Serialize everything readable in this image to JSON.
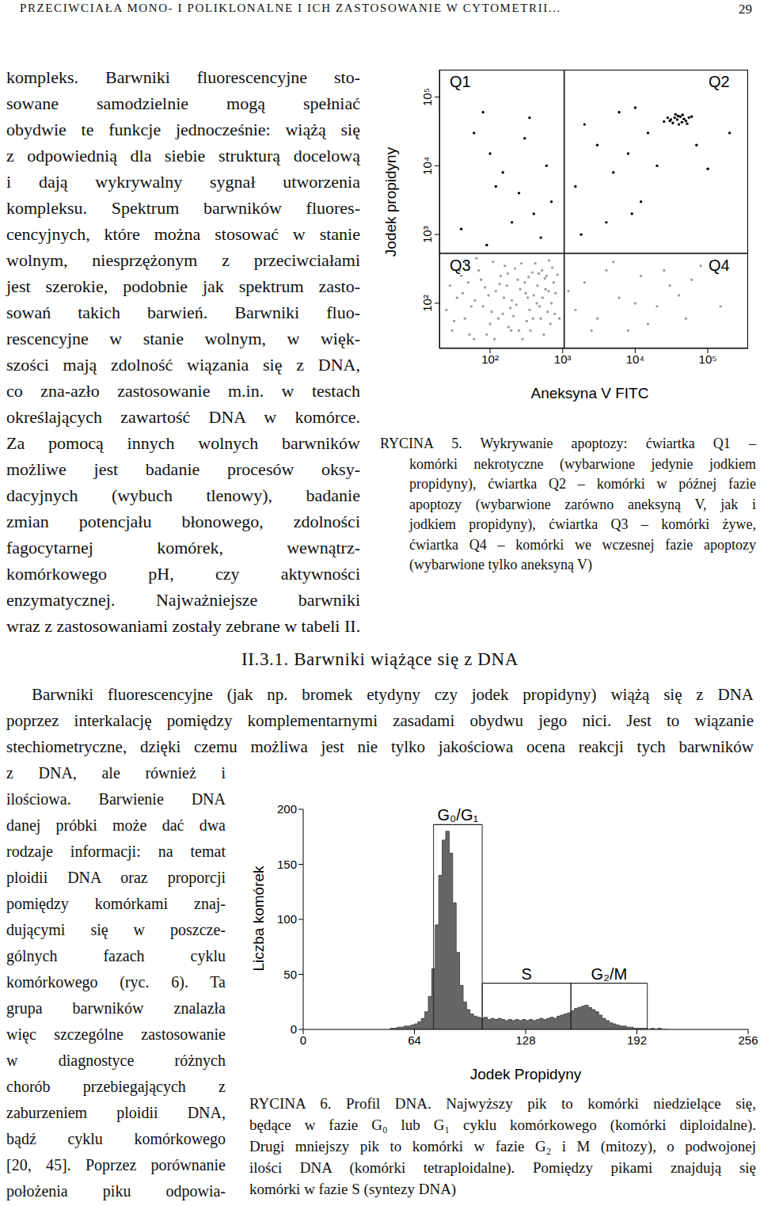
{
  "document": {
    "header": {
      "running_title": "PRZECIWCIAŁA MONO- I POLIKLONALNE I ICH ZASTOSOWANIE W CYTOMETRII...",
      "page": "29"
    },
    "column_text": [
      "kompleks. Barwniki fluorescencyjne sto-",
      "sowane samodzielnie mogą spełniać",
      "obydwie te funkcje jednocześnie: wiążą się",
      "z odpowiednią dla siebie strukturą docelową",
      "i dają wykrywalny sygnał utworzenia",
      "kompleksu. Spektrum barwników fluores-",
      "cencyjnych, które można stosować w stanie",
      "wolnym, niesprzężonym z przeciwciałami",
      "jest szerokie, podobnie jak spektrum zasto-",
      "sowań takich barwień. Barwniki fluo-",
      "rescencyjne w stanie wolnym, w więk-",
      "szości mają zdolność wiązania się z DNA,",
      "co zna-azło zastosowanie m.in. w testach",
      "określających zawartość DNA w komórce.",
      "Za pomocą innych wolnych barwników",
      "możliwe jest badanie procesów oksy-",
      "dacyjnych (wybuch tlenowy), badanie",
      "zmian potencjału błonowego, zdolności",
      "fagocytarnej komórek, wewnątrz-",
      "komórkowego pH, czy aktywności",
      "enzymatycznej. Najważniejsze barwniki",
      "wraz z zastosowaniami zostały zebrane w tabeli II."
    ],
    "section_heading": "II.3.1. Barwniki wiążące się z DNA",
    "section_full_lines": [
      "Barwniki fluorescencyjne (jak np. bromek etydyny czy jodek propidyny) wiążą się z DNA",
      "poprzez interkalację pomiędzy komplementarnymi zasadami obydwu jego nici. Jest to wiązanie",
      "stechiometryczne, dzięki czemu możliwa jest nie tylko jakościowa ocena reakcji tych barwników"
    ],
    "section_narrow_lines": [
      "z DNA, ale również i",
      "ilościowa. Barwienie DNA",
      "danej próbki może dać dwa",
      "rodzaje informacji: na temat",
      "ploidii DNA oraz proporcji",
      "pomiędzy komórkami znaj-",
      "dującymi się w poszcze-",
      "gólnych fazach cyklu",
      "komórkowego (ryc. 6). Ta",
      "grupa barwników znalazła",
      "więc szczególne zastosowanie",
      "w diagnostyce różnych",
      "chorób przebiegających z",
      "zaburzeniem ploidii DNA,",
      "bądź cyklu komórkowego",
      "[20, 45]. Poprzez porównanie",
      "położenia piku odpowia-"
    ]
  },
  "chart_data": [
    {
      "type": "scatter",
      "x_label": "Aneksyna V FITC",
      "y_label": "Jodek propidyny",
      "log": true,
      "xlim": [
        20,
        360000
      ],
      "ylim": [
        22,
        250000
      ],
      "xticks": [
        {
          "value": 100,
          "label": "10²"
        },
        {
          "value": 1000,
          "label": "10³"
        },
        {
          "value": 10000,
          "label": "10⁴"
        },
        {
          "value": 100000,
          "label": "10⁵"
        }
      ],
      "yticks": [
        {
          "value": 100,
          "label": "10²"
        },
        {
          "value": 1000,
          "label": "10³"
        },
        {
          "value": 10000,
          "label": "10⁴"
        },
        {
          "value": 100000,
          "label": "10⁵"
        }
      ],
      "thresholds": {
        "x": 1050,
        "y": 530
      },
      "annotations": [
        "Q1",
        "Q2",
        "Q3",
        "Q4"
      ],
      "series": [
        {
          "color": "#a0a0a0",
          "x": [
            30,
            45,
            60,
            80,
            100,
            120,
            150,
            200,
            250,
            300,
            350,
            400,
            500,
            600,
            700,
            35,
            50,
            70,
            90,
            110,
            140,
            180,
            220,
            260,
            320,
            380,
            450,
            550,
            650,
            750,
            40,
            55,
            65,
            85,
            130,
            160,
            190,
            240,
            280,
            330,
            420,
            480,
            580,
            680,
            25,
            28,
            38,
            95,
            170,
            210,
            360,
            520,
            620,
            800,
            900,
            1500,
            2000,
            3000,
            4000,
            6000,
            8000,
            12000,
            20000,
            30000,
            50000,
            80000,
            1200,
            2500,
            5000,
            10000,
            15000,
            25000,
            40000,
            60000,
            150000,
            32,
            42,
            52,
            62,
            75,
            105,
            115,
            135,
            155,
            175,
            195,
            230,
            270,
            310,
            340,
            390,
            440,
            470,
            530,
            570,
            640,
            720,
            780,
            850,
            46
          ],
          "y": [
            40,
            60,
            30,
            90,
            50,
            150,
            70,
            110,
            40,
            200,
            80,
            130,
            60,
            250,
            100,
            120,
            200,
            300,
            35,
            400,
            250,
            45,
            320,
            160,
            55,
            280,
            180,
            35,
            420,
            200,
            250,
            90,
            450,
            170,
            60,
            350,
            85,
            220,
            30,
            120,
            380,
            90,
            160,
            50,
            80,
            180,
            300,
            130,
            180,
            65,
            40,
            300,
            75,
            140,
            60,
            80,
            200,
            60,
            300,
            120,
            40,
            250,
            90,
            180,
            60,
            350,
            150,
            40,
            400,
            100,
            50,
            300,
            130,
            220,
            90,
            55,
            140,
            35,
            110,
            220,
            75,
            30,
            190,
            120,
            270,
            40,
            95,
            380,
            140,
            240,
            60,
            100,
            270,
            120,
            230,
            150,
            330,
            70,
            260,
            380
          ]
        },
        {
          "color": "#000000",
          "x": [
            60,
            100,
            150,
            250,
            400,
            80,
            120,
            200,
            300,
            500,
            700,
            40,
            90,
            600,
            350,
            30000,
            35000,
            40000,
            45000,
            38000,
            42000,
            50000,
            33000,
            47000,
            36000,
            55000,
            28000,
            44000,
            39000,
            52000,
            31000,
            60000,
            25000,
            2000,
            3000,
            5000,
            8000,
            12000,
            15000,
            20000,
            1500,
            4000,
            10000,
            70000,
            100000,
            1800,
            6000,
            9000,
            200000
          ],
          "y": [
            30000,
            15000,
            8000,
            4000,
            2000,
            60000,
            5000,
            1500,
            25000,
            900,
            3000,
            1200,
            700,
            10000,
            50000,
            45000,
            50000,
            40000,
            55000,
            47000,
            52000,
            45000,
            42000,
            48000,
            56000,
            50000,
            50000,
            43000,
            53000,
            41000,
            47000,
            52000,
            44000,
            40000,
            20000,
            8000,
            15000,
            3000,
            30000,
            10000,
            5000,
            1500,
            70000,
            20000,
            9000,
            1000,
            60000,
            2000,
            30000
          ]
        }
      ],
      "caption": [
        "RYCINA 5. Wykrywanie apoptozy: ćwiartka Q1 –",
        "komórki nekrotyczne (wybarwione jedynie jodkiem",
        "propidyny), ćwiartka Q2 – komórki w późnej fazie",
        "apoptozy (wybarwione zarówno aneksyną V, jak i",
        "jodkiem propidyny), ćwiartka Q3 – komórki żywe,",
        "ćwiartka Q4 – komórki we wczesnej fazie apoptozy",
        "(wybarwione tylko aneksyną V)"
      ]
    },
    {
      "type": "histogram",
      "x_label": "Jodek Propidyny",
      "y_label": "Liczba komórek",
      "xlim": [
        0,
        256
      ],
      "ylim": [
        0,
        200
      ],
      "xticks": [
        0,
        64,
        128,
        192,
        256
      ],
      "yticks": [
        0,
        50,
        100,
        150,
        200
      ],
      "color": "#666666",
      "bins": [
        50,
        52,
        54,
        56,
        58,
        60,
        62,
        64,
        66,
        68,
        70,
        72,
        74,
        76,
        78,
        80,
        82,
        84,
        86,
        88,
        90,
        92,
        94,
        96,
        98,
        100,
        102,
        104,
        106,
        108,
        110,
        112,
        114,
        116,
        118,
        120,
        122,
        124,
        126,
        128,
        130,
        132,
        134,
        136,
        138,
        140,
        142,
        144,
        146,
        148,
        150,
        152,
        154,
        156,
        158,
        160,
        162,
        164,
        166,
        168,
        170,
        172,
        174,
        176,
        178,
        180,
        182,
        184,
        186,
        188,
        190,
        192,
        194,
        196,
        198,
        200,
        202,
        204,
        206,
        208,
        210
      ],
      "counts": [
        1,
        1,
        2,
        2,
        3,
        3,
        4,
        5,
        7,
        10,
        16,
        30,
        55,
        95,
        140,
        172,
        180,
        160,
        115,
        70,
        40,
        25,
        18,
        14,
        12,
        11,
        10,
        11,
        9,
        10,
        9,
        10,
        9,
        8,
        9,
        8,
        9,
        8,
        9,
        8,
        9,
        8,
        9,
        10,
        9,
        10,
        11,
        10,
        12,
        13,
        14,
        15,
        17,
        19,
        20,
        21,
        22,
        20,
        18,
        16,
        13,
        10,
        8,
        6,
        5,
        4,
        3,
        3,
        2,
        2,
        1,
        1,
        1,
        1,
        0,
        1,
        0,
        1,
        0,
        0
      ],
      "annotations": [
        {
          "text": "G₀/G₁",
          "x_range": [
            75,
            103
          ],
          "y": 186
        },
        {
          "text": "S",
          "x_range": [
            103,
            154
          ],
          "y": 42
        },
        {
          "text": "G₂/M",
          "x_range": [
            154,
            198
          ],
          "y": 42
        }
      ],
      "caption": [
        "RYCINA 6. Profil DNA. Najwyższy pik to komórki niedzielące się,",
        "będące w fazie G₀ lub G₁ cyklu komórkowego (komórki diploidalne).",
        "Drugi mniejszy pik to komórki w fazie G₂ i M (mitozy), o podwojonej",
        "ilości DNA (komórki tetraploidalne). Pomiędzy pikami znajdują się",
        "komórki w fazie S (syntezy DNA)"
      ]
    }
  ]
}
